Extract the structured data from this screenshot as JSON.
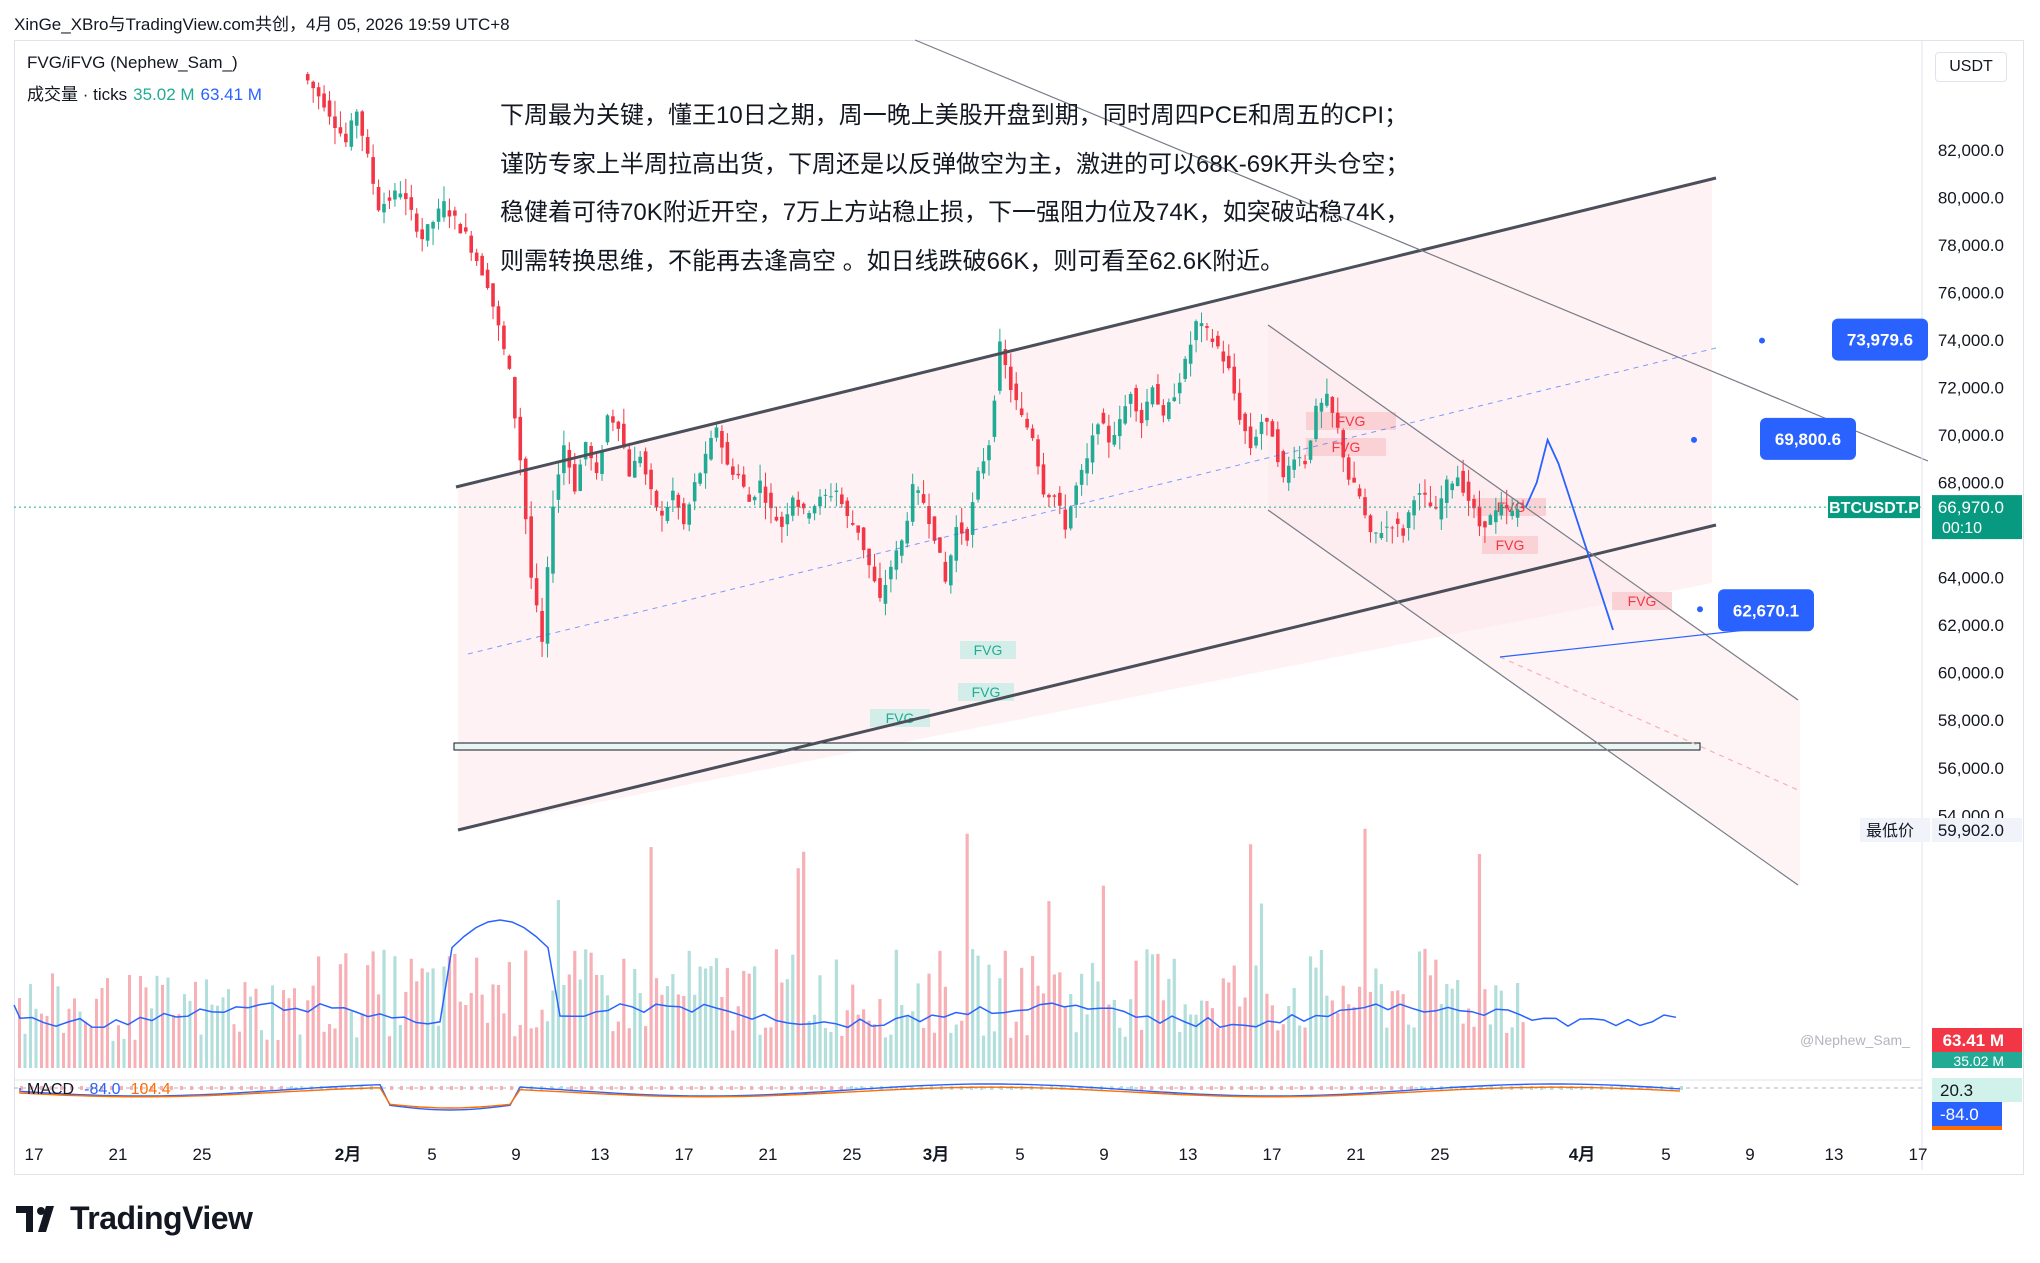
{
  "caption": "XinGe_XBro与TradingView.com共创，4月 05, 2026 19:59 UTC+8",
  "currency": "USDT",
  "indicator_title": "FVG/iFVG (Nephew_Sam_)",
  "volume_legend": {
    "label": "成交量 · ticks",
    "v1": "35.02 M",
    "v2": "63.41 M"
  },
  "macd_legend": {
    "label": "MACD",
    "v1": "-84.0",
    "v2": "104.4"
  },
  "notes": [
    "下周最为关键，懂王10日之期，周一晚上美股开盘到期，同时周四PCE和周五的CPI；",
    "谨防专家上半周拉高出货，下周还是以反弹做空为主，激进的可以68K-69K开头仓空；",
    "稳健着可待70K附近开空，7万上方站稳止损，下一强阻力位及74K，如突破站稳74K，",
    "则需转换思维，不能再去逢高空 。如日线跌破66K，则可看至62.6K附近。"
  ],
  "watermark": "@Nephew_Sam_",
  "brand": "TradingView",
  "colors": {
    "up": "#22ab94",
    "down": "#f23645",
    "vol_up": "#b2dfdb",
    "vol_down": "#f7b0b5",
    "blue": "#2962ff",
    "dark": "#131722",
    "orange": "#ff6d00"
  },
  "chart_data": {
    "type": "candlestick",
    "symbol": "BTCUSDT.P",
    "y_axis_ticks": [
      82000,
      80000,
      78000,
      76000,
      74000,
      72000,
      70000,
      68000,
      66000,
      64000,
      62000,
      60000,
      58000,
      56000,
      54000
    ],
    "x_axis_ticks": [
      "17",
      "21",
      "25",
      "2月",
      "5",
      "9",
      "13",
      "17",
      "21",
      "25",
      "3月",
      "5",
      "9",
      "13",
      "17",
      "21",
      "25",
      "4月",
      "5",
      "9",
      "13",
      "17"
    ],
    "price_labels": [
      {
        "value": 73979.6,
        "text": "73,979.6"
      },
      {
        "value": 69800.6,
        "text": "69,800.6"
      },
      {
        "value": 62670.1,
        "text": "62,670.1"
      }
    ],
    "last_price": {
      "value": 66970.0,
      "text": "66,970.0",
      "countdown": "00:10"
    },
    "lowest_price": {
      "label": "最低价",
      "value": 59902.0,
      "text": "59,902.0"
    },
    "volume_labels": [
      "63.41 M",
      "35.02 M"
    ],
    "macd_labels": [
      "20.3",
      "-84.0"
    ],
    "fvg_label": "FVG",
    "price_path_points": [
      [
        0,
        85200
      ],
      [
        2,
        84000
      ],
      [
        4,
        82300
      ],
      [
        5,
        83700
      ],
      [
        7,
        79600
      ],
      [
        9,
        80300
      ],
      [
        11,
        78300
      ],
      [
        13,
        79700
      ],
      [
        15,
        78400
      ],
      [
        17,
        76400
      ],
      [
        19,
        72600
      ],
      [
        20,
        69000
      ],
      [
        21,
        64000
      ],
      [
        22,
        61200
      ],
      [
        23,
        67200
      ],
      [
        24,
        69600
      ],
      [
        25,
        67800
      ],
      [
        26,
        69700
      ],
      [
        27,
        68200
      ],
      [
        28,
        70800
      ],
      [
        29,
        70500
      ],
      [
        30,
        68400
      ],
      [
        31,
        69200
      ],
      [
        32,
        67500
      ],
      [
        33,
        66500
      ],
      [
        34,
        67600
      ],
      [
        35,
        66200
      ],
      [
        36,
        67900
      ],
      [
        37,
        69000
      ],
      [
        38,
        70400
      ],
      [
        39,
        68700
      ],
      [
        40,
        68300
      ],
      [
        41,
        67200
      ],
      [
        42,
        68000
      ],
      [
        43,
        66800
      ],
      [
        44,
        66200
      ],
      [
        45,
        67500
      ],
      [
        46,
        66700
      ],
      [
        47,
        67100
      ],
      [
        48,
        67400
      ],
      [
        49,
        67700
      ],
      [
        50,
        66500
      ],
      [
        51,
        66000
      ],
      [
        52,
        64500
      ],
      [
        53,
        63000
      ],
      [
        54,
        64500
      ],
      [
        55,
        65500
      ],
      [
        56,
        67700
      ],
      [
        57,
        67200
      ],
      [
        58,
        65800
      ],
      [
        59,
        63800
      ],
      [
        60,
        66100
      ],
      [
        61,
        65800
      ],
      [
        62,
        68300
      ],
      [
        63,
        69700
      ],
      [
        64,
        73700
      ],
      [
        65,
        72000
      ],
      [
        66,
        70700
      ],
      [
        67,
        70000
      ],
      [
        68,
        67700
      ],
      [
        69,
        67400
      ],
      [
        70,
        66200
      ],
      [
        71,
        67800
      ],
      [
        72,
        68900
      ],
      [
        73,
        70700
      ],
      [
        74,
        69800
      ],
      [
        75,
        70500
      ],
      [
        76,
        71900
      ],
      [
        77,
        70600
      ],
      [
        78,
        72200
      ],
      [
        79,
        70600
      ],
      [
        80,
        71800
      ],
      [
        81,
        73000
      ],
      [
        82,
        74700
      ],
      [
        83,
        74300
      ],
      [
        84,
        73700
      ],
      [
        85,
        72700
      ],
      [
        86,
        70800
      ],
      [
        87,
        69500
      ],
      [
        88,
        70600
      ],
      [
        89,
        70100
      ],
      [
        90,
        68100
      ],
      [
        91,
        69200
      ],
      [
        92,
        68900
      ],
      [
        93,
        71000
      ],
      [
        94,
        71500
      ],
      [
        95,
        70200
      ],
      [
        96,
        68200
      ],
      [
        97,
        67400
      ],
      [
        98,
        65700
      ],
      [
        99,
        66000
      ],
      [
        100,
        66300
      ],
      [
        101,
        65900
      ],
      [
        102,
        67500
      ],
      [
        103,
        67300
      ],
      [
        104,
        66700
      ],
      [
        105,
        67900
      ],
      [
        106,
        68300
      ],
      [
        107,
        67300
      ],
      [
        108,
        66200
      ],
      [
        109,
        66500
      ],
      [
        110,
        66900
      ],
      [
        111,
        66700
      ],
      [
        112,
        66970
      ]
    ],
    "projection_points": [
      [
        112,
        66970
      ],
      [
        113,
        68000
      ],
      [
        114,
        69800
      ],
      [
        115,
        68800
      ],
      [
        117,
        66000
      ],
      [
        119,
        63200
      ],
      [
        120,
        61800
      ]
    ]
  }
}
